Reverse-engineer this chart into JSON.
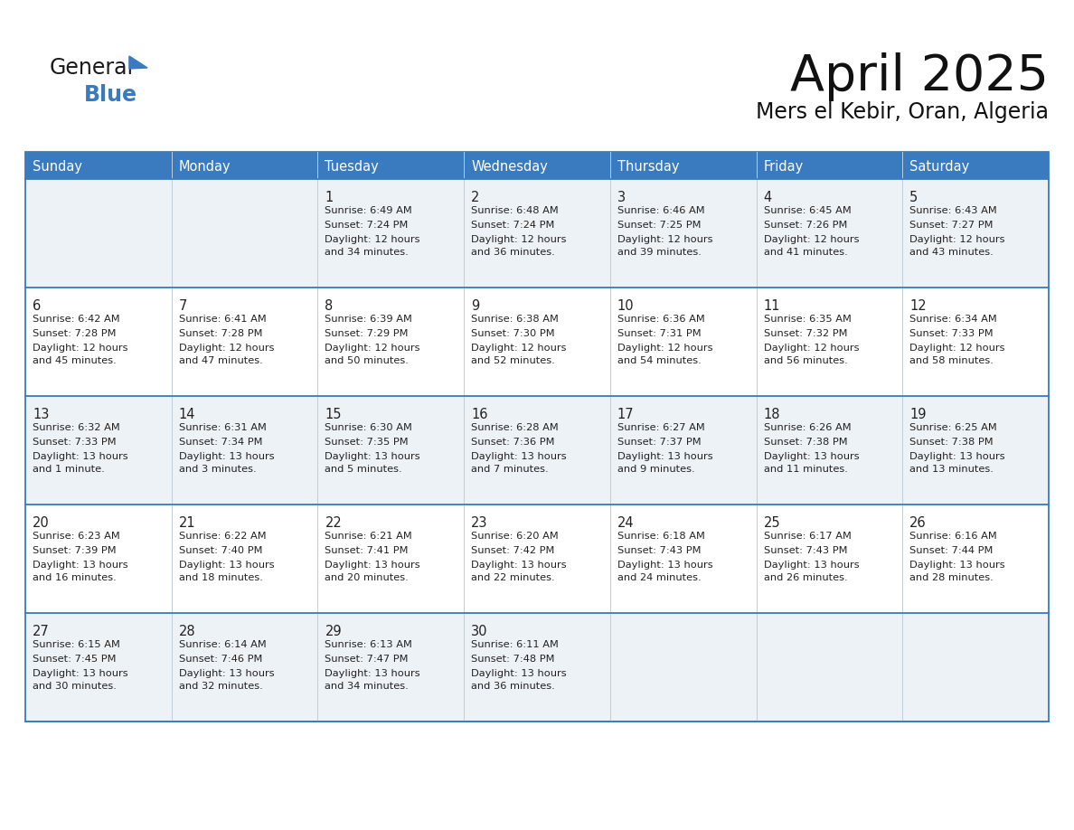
{
  "title": "April 2025",
  "subtitle": "Mers el Kebir, Oran, Algeria",
  "header_bg": "#3a7abf",
  "header_text_color": "#ffffff",
  "row_bg_odd": "#edf2f7",
  "row_bg_even": "#ffffff",
  "border_color": "#3a7abf",
  "cell_border_color": "#aabcd0",
  "text_color": "#222222",
  "days_of_week": [
    "Sunday",
    "Monday",
    "Tuesday",
    "Wednesday",
    "Thursday",
    "Friday",
    "Saturday"
  ],
  "weeks": [
    [
      {
        "day": "",
        "sunrise": "",
        "sunset": "",
        "daylight": ""
      },
      {
        "day": "",
        "sunrise": "",
        "sunset": "",
        "daylight": ""
      },
      {
        "day": "1",
        "sunrise": "6:49 AM",
        "sunset": "7:24 PM",
        "daylight": "12 hours\nand 34 minutes."
      },
      {
        "day": "2",
        "sunrise": "6:48 AM",
        "sunset": "7:24 PM",
        "daylight": "12 hours\nand 36 minutes."
      },
      {
        "day": "3",
        "sunrise": "6:46 AM",
        "sunset": "7:25 PM",
        "daylight": "12 hours\nand 39 minutes."
      },
      {
        "day": "4",
        "sunrise": "6:45 AM",
        "sunset": "7:26 PM",
        "daylight": "12 hours\nand 41 minutes."
      },
      {
        "day": "5",
        "sunrise": "6:43 AM",
        "sunset": "7:27 PM",
        "daylight": "12 hours\nand 43 minutes."
      }
    ],
    [
      {
        "day": "6",
        "sunrise": "6:42 AM",
        "sunset": "7:28 PM",
        "daylight": "12 hours\nand 45 minutes."
      },
      {
        "day": "7",
        "sunrise": "6:41 AM",
        "sunset": "7:28 PM",
        "daylight": "12 hours\nand 47 minutes."
      },
      {
        "day": "8",
        "sunrise": "6:39 AM",
        "sunset": "7:29 PM",
        "daylight": "12 hours\nand 50 minutes."
      },
      {
        "day": "9",
        "sunrise": "6:38 AM",
        "sunset": "7:30 PM",
        "daylight": "12 hours\nand 52 minutes."
      },
      {
        "day": "10",
        "sunrise": "6:36 AM",
        "sunset": "7:31 PM",
        "daylight": "12 hours\nand 54 minutes."
      },
      {
        "day": "11",
        "sunrise": "6:35 AM",
        "sunset": "7:32 PM",
        "daylight": "12 hours\nand 56 minutes."
      },
      {
        "day": "12",
        "sunrise": "6:34 AM",
        "sunset": "7:33 PM",
        "daylight": "12 hours\nand 58 minutes."
      }
    ],
    [
      {
        "day": "13",
        "sunrise": "6:32 AM",
        "sunset": "7:33 PM",
        "daylight": "13 hours\nand 1 minute."
      },
      {
        "day": "14",
        "sunrise": "6:31 AM",
        "sunset": "7:34 PM",
        "daylight": "13 hours\nand 3 minutes."
      },
      {
        "day": "15",
        "sunrise": "6:30 AM",
        "sunset": "7:35 PM",
        "daylight": "13 hours\nand 5 minutes."
      },
      {
        "day": "16",
        "sunrise": "6:28 AM",
        "sunset": "7:36 PM",
        "daylight": "13 hours\nand 7 minutes."
      },
      {
        "day": "17",
        "sunrise": "6:27 AM",
        "sunset": "7:37 PM",
        "daylight": "13 hours\nand 9 minutes."
      },
      {
        "day": "18",
        "sunrise": "6:26 AM",
        "sunset": "7:38 PM",
        "daylight": "13 hours\nand 11 minutes."
      },
      {
        "day": "19",
        "sunrise": "6:25 AM",
        "sunset": "7:38 PM",
        "daylight": "13 hours\nand 13 minutes."
      }
    ],
    [
      {
        "day": "20",
        "sunrise": "6:23 AM",
        "sunset": "7:39 PM",
        "daylight": "13 hours\nand 16 minutes."
      },
      {
        "day": "21",
        "sunrise": "6:22 AM",
        "sunset": "7:40 PM",
        "daylight": "13 hours\nand 18 minutes."
      },
      {
        "day": "22",
        "sunrise": "6:21 AM",
        "sunset": "7:41 PM",
        "daylight": "13 hours\nand 20 minutes."
      },
      {
        "day": "23",
        "sunrise": "6:20 AM",
        "sunset": "7:42 PM",
        "daylight": "13 hours\nand 22 minutes."
      },
      {
        "day": "24",
        "sunrise": "6:18 AM",
        "sunset": "7:43 PM",
        "daylight": "13 hours\nand 24 minutes."
      },
      {
        "day": "25",
        "sunrise": "6:17 AM",
        "sunset": "7:43 PM",
        "daylight": "13 hours\nand 26 minutes."
      },
      {
        "day": "26",
        "sunrise": "6:16 AM",
        "sunset": "7:44 PM",
        "daylight": "13 hours\nand 28 minutes."
      }
    ],
    [
      {
        "day": "27",
        "sunrise": "6:15 AM",
        "sunset": "7:45 PM",
        "daylight": "13 hours\nand 30 minutes."
      },
      {
        "day": "28",
        "sunrise": "6:14 AM",
        "sunset": "7:46 PM",
        "daylight": "13 hours\nand 32 minutes."
      },
      {
        "day": "29",
        "sunrise": "6:13 AM",
        "sunset": "7:47 PM",
        "daylight": "13 hours\nand 34 minutes."
      },
      {
        "day": "30",
        "sunrise": "6:11 AM",
        "sunset": "7:48 PM",
        "daylight": "13 hours\nand 36 minutes."
      },
      {
        "day": "",
        "sunrise": "",
        "sunset": "",
        "daylight": ""
      },
      {
        "day": "",
        "sunrise": "",
        "sunset": "",
        "daylight": ""
      },
      {
        "day": "",
        "sunrise": "",
        "sunset": "",
        "daylight": ""
      }
    ]
  ]
}
